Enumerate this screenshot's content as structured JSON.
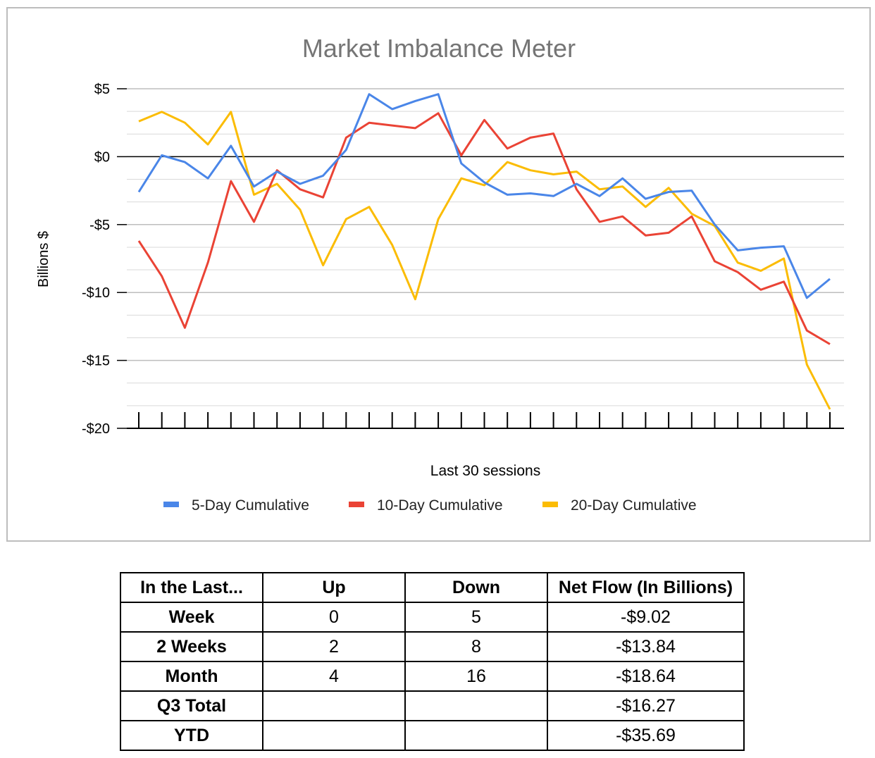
{
  "chart_data": {
    "type": "line",
    "title": "Market Imbalance Meter",
    "xlabel": "Last 30 sessions",
    "ylabel": "Billions $",
    "ylim": [
      -20,
      5
    ],
    "yticks": [
      5,
      0,
      -5,
      -10,
      -15,
      -20
    ],
    "ytick_labels": [
      "$5",
      "$0",
      "-$5",
      "-$10",
      "-$15",
      "-$20"
    ],
    "x": [
      1,
      2,
      3,
      4,
      5,
      6,
      7,
      8,
      9,
      10,
      11,
      12,
      13,
      14,
      15,
      16,
      17,
      18,
      19,
      20,
      21,
      22,
      23,
      24,
      25,
      26,
      27,
      28,
      29,
      30,
      31
    ],
    "legend_position": "bottom",
    "grid": true,
    "series": [
      {
        "name": "5-Day Cumulative",
        "color": "#4a86e8",
        "values": [
          -2.6,
          0.1,
          -0.4,
          -1.6,
          0.8,
          -2.2,
          -1.1,
          -2.0,
          -1.4,
          0.5,
          4.6,
          3.5,
          4.1,
          4.6,
          -0.5,
          -1.9,
          -2.8,
          -2.7,
          -2.9,
          -2.0,
          -2.9,
          -1.6,
          -3.1,
          -2.6,
          -2.5,
          -5.0,
          -6.9,
          -6.7,
          -6.6,
          -10.4,
          -9.0
        ]
      },
      {
        "name": "10-Day Cumulative",
        "color": "#ea4335",
        "values": [
          -6.2,
          -8.8,
          -12.6,
          -7.8,
          -1.8,
          -4.8,
          -1.0,
          -2.4,
          -3.0,
          1.4,
          2.5,
          2.3,
          2.1,
          3.2,
          0.1,
          2.7,
          0.6,
          1.4,
          1.7,
          -2.4,
          -4.8,
          -4.4,
          -5.8,
          -5.6,
          -4.4,
          -7.7,
          -8.5,
          -9.8,
          -9.2,
          -12.8,
          -13.8
        ]
      },
      {
        "name": "20-Day Cumulative",
        "color": "#fbbc04",
        "values": [
          2.6,
          3.3,
          2.5,
          0.9,
          3.3,
          -2.8,
          -2.0,
          -3.9,
          -8.0,
          -4.6,
          -3.7,
          -6.5,
          -10.5,
          -4.6,
          -1.6,
          -2.1,
          -0.4,
          -1.0,
          -1.3,
          -1.1,
          -2.4,
          -2.2,
          -3.7,
          -2.3,
          -4.2,
          -5.1,
          -7.8,
          -8.4,
          -7.5,
          -15.3,
          -18.6
        ]
      }
    ]
  },
  "table": {
    "headers": [
      "In the Last...",
      "Up",
      "Down",
      "Net Flow (In Billions)"
    ],
    "rows": [
      [
        "Week",
        "0",
        "5",
        "-$9.02"
      ],
      [
        "2 Weeks",
        "2",
        "8",
        "-$13.84"
      ],
      [
        "Month",
        "4",
        "16",
        "-$18.64"
      ],
      [
        "Q3 Total",
        "",
        "",
        "-$16.27"
      ],
      [
        "YTD",
        "",
        "",
        "-$35.69"
      ]
    ]
  }
}
